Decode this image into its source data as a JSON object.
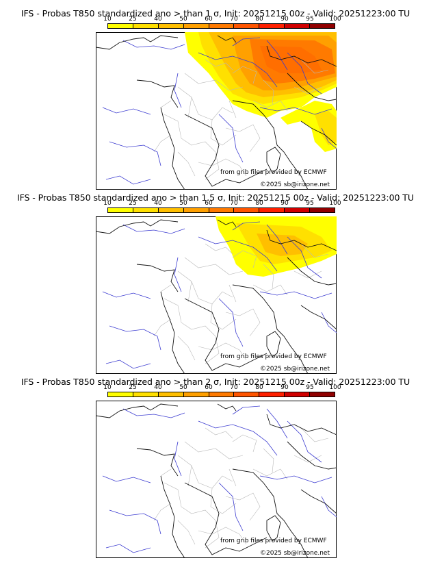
{
  "legend": {
    "ticks": [
      "10",
      "25",
      "40",
      "50",
      "60",
      "70",
      "80",
      "90",
      "95",
      "100"
    ],
    "colors": [
      "#ffff00",
      "#ffe000",
      "#ffbf00",
      "#ffa000",
      "#ff7a00",
      "#ff5500",
      "#ff2000",
      "#d00000",
      "#900000",
      "#500000"
    ]
  },
  "panels": [
    {
      "title": "IFS - Probas T850  standardized ano > than 1 σ, Init: 20251215 00z - Valid: 20251223:00 TU",
      "credit": "from grib files provided by ECMWF",
      "copyright": "©2025 sb@irizone.net",
      "coverage": "large"
    },
    {
      "title": "IFS - Probas T850  standardized ano > than 1.5 σ, Init: 20251215 00z - Valid: 20251223:00 TU",
      "credit": "from grib files provided by ECMWF",
      "copyright": "©2025 sb@irizone.net",
      "coverage": "medium"
    },
    {
      "title": "IFS - Probas T850  standardized ano > than 2 σ, Init: 20251215 00z - Valid: 20251223:00 TU",
      "credit": "from grib files provided by ECMWF",
      "copyright": "©2025 sb@irizone.net",
      "coverage": "none"
    }
  ]
}
